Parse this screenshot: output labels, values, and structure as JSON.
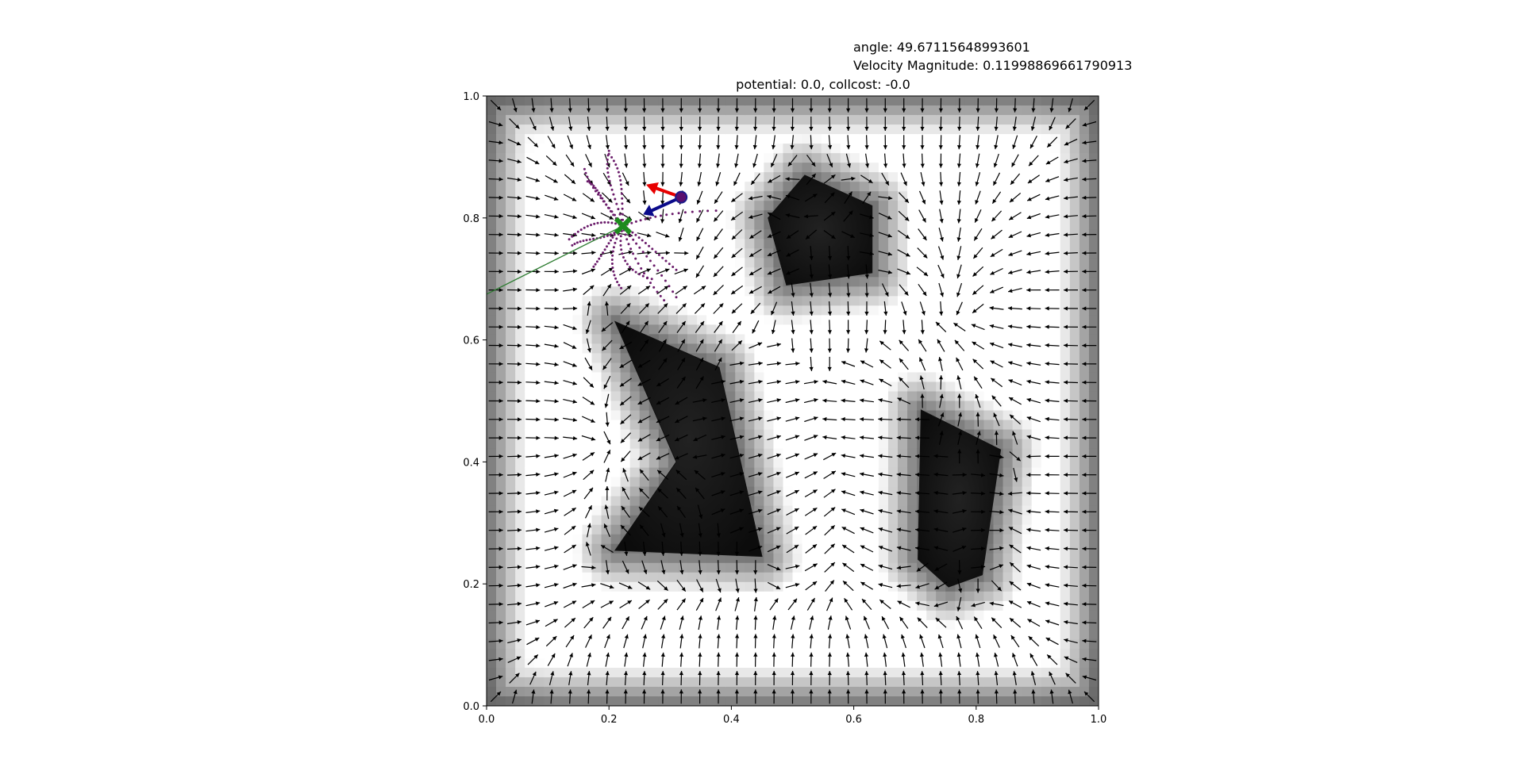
{
  "info": {
    "angle_text": "angle: 49.67115648993601",
    "velocity_text": "Velocity Magnitude: 0.11998869661790913"
  },
  "chart_data": {
    "type": "scatter",
    "title": "potential: 0.0, collcost: -0.0",
    "xlabel": "",
    "ylabel": "",
    "xlim": [
      0.0,
      1.0
    ],
    "ylim": [
      0.0,
      1.0
    ],
    "xticks": [
      "0.0",
      "0.2",
      "0.4",
      "0.6",
      "0.8",
      "1.0"
    ],
    "yticks": [
      "0.0",
      "0.2",
      "0.4",
      "0.6",
      "0.8",
      "1.0"
    ],
    "grid": false,
    "background": "potential field (grayscale, darker = higher potential)",
    "quiver_grid": {
      "nx": 33,
      "ny": 33
    },
    "obstacles": [
      {
        "name": "pentagon",
        "vertices": [
          [
            0.52,
            0.87
          ],
          [
            0.63,
            0.82
          ],
          [
            0.63,
            0.71
          ],
          [
            0.49,
            0.69
          ],
          [
            0.46,
            0.8
          ]
        ]
      },
      {
        "name": "boomerang",
        "vertices": [
          [
            0.21,
            0.63
          ],
          [
            0.38,
            0.555
          ],
          [
            0.45,
            0.245
          ],
          [
            0.21,
            0.255
          ],
          [
            0.31,
            0.4
          ]
        ]
      },
      {
        "name": "quad",
        "vertices": [
          [
            0.71,
            0.485
          ],
          [
            0.84,
            0.42
          ],
          [
            0.81,
            0.215
          ],
          [
            0.755,
            0.195
          ],
          [
            0.705,
            0.24
          ]
        ]
      }
    ],
    "agent": {
      "x": 0.318,
      "y": 0.834,
      "color": "#1a1a8a"
    },
    "goal": {
      "x": 0.223,
      "y": 0.787,
      "marker": "X",
      "color": "#1f8b1f"
    },
    "velocity_arrow": {
      "color": "#e80000",
      "dx": -0.05,
      "dy": 0.018
    },
    "heading_arrow": {
      "color": "#0a0a8a",
      "dx": -0.055,
      "dy": -0.025
    },
    "reference_line": {
      "color": "#2e7d32",
      "x": [
        0.0,
        0.223
      ],
      "y": [
        0.675,
        0.787
      ]
    },
    "trajectory_samples_color": "#6a1b6a",
    "colors": {
      "obstacle": "#111111",
      "quiver": "#000000"
    }
  }
}
